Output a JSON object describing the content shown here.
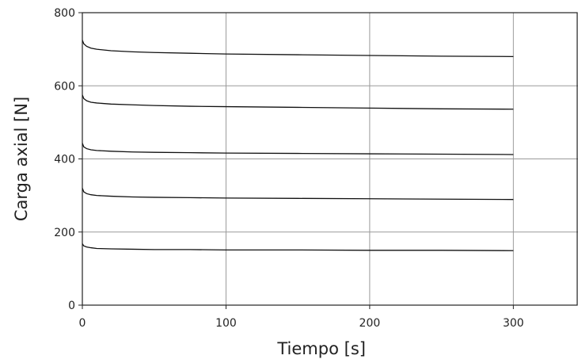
{
  "chart_data": {
    "type": "line",
    "title": "",
    "xlabel": "Tiempo [s]",
    "ylabel": "Carga axial [N]",
    "xlim": [
      0,
      345
    ],
    "ylim": [
      0,
      800
    ],
    "xticks": [
      0,
      100,
      200,
      300
    ],
    "yticks": [
      0,
      200,
      400,
      600,
      800
    ],
    "grid": true,
    "legend": "none",
    "series": [
      {
        "x": [
          0,
          1,
          3,
          6,
          10,
          20,
          35,
          50,
          75,
          100,
          150,
          200,
          250,
          300
        ],
        "values": [
          725,
          715,
          708,
          703,
          700,
          696,
          693,
          691,
          689,
          687,
          685,
          683,
          681,
          680
        ]
      },
      {
        "x": [
          0,
          1,
          3,
          6,
          10,
          20,
          35,
          50,
          75,
          100,
          150,
          200,
          250,
          300
        ],
        "values": [
          575,
          565,
          559,
          555,
          553,
          550,
          548,
          546,
          544,
          543,
          541,
          539,
          537,
          536
        ]
      },
      {
        "x": [
          0,
          1,
          3,
          6,
          10,
          20,
          35,
          50,
          75,
          100,
          150,
          200,
          250,
          300
        ],
        "values": [
          443,
          433,
          428,
          425,
          423,
          421,
          419,
          418,
          417,
          416,
          415,
          414,
          413,
          412
        ]
      },
      {
        "x": [
          0,
          1,
          3,
          6,
          10,
          20,
          35,
          50,
          75,
          100,
          150,
          200,
          250,
          300
        ],
        "values": [
          320,
          310,
          305,
          302,
          300,
          298,
          296,
          295,
          294,
          293,
          292,
          291,
          290,
          289
        ]
      },
      {
        "x": [
          0,
          1,
          3,
          6,
          10,
          20,
          35,
          50,
          75,
          100,
          150,
          200,
          250,
          300
        ],
        "values": [
          168,
          162,
          159,
          157,
          155,
          154,
          153,
          152,
          152,
          151,
          151,
          150,
          150,
          149
        ]
      }
    ]
  }
}
